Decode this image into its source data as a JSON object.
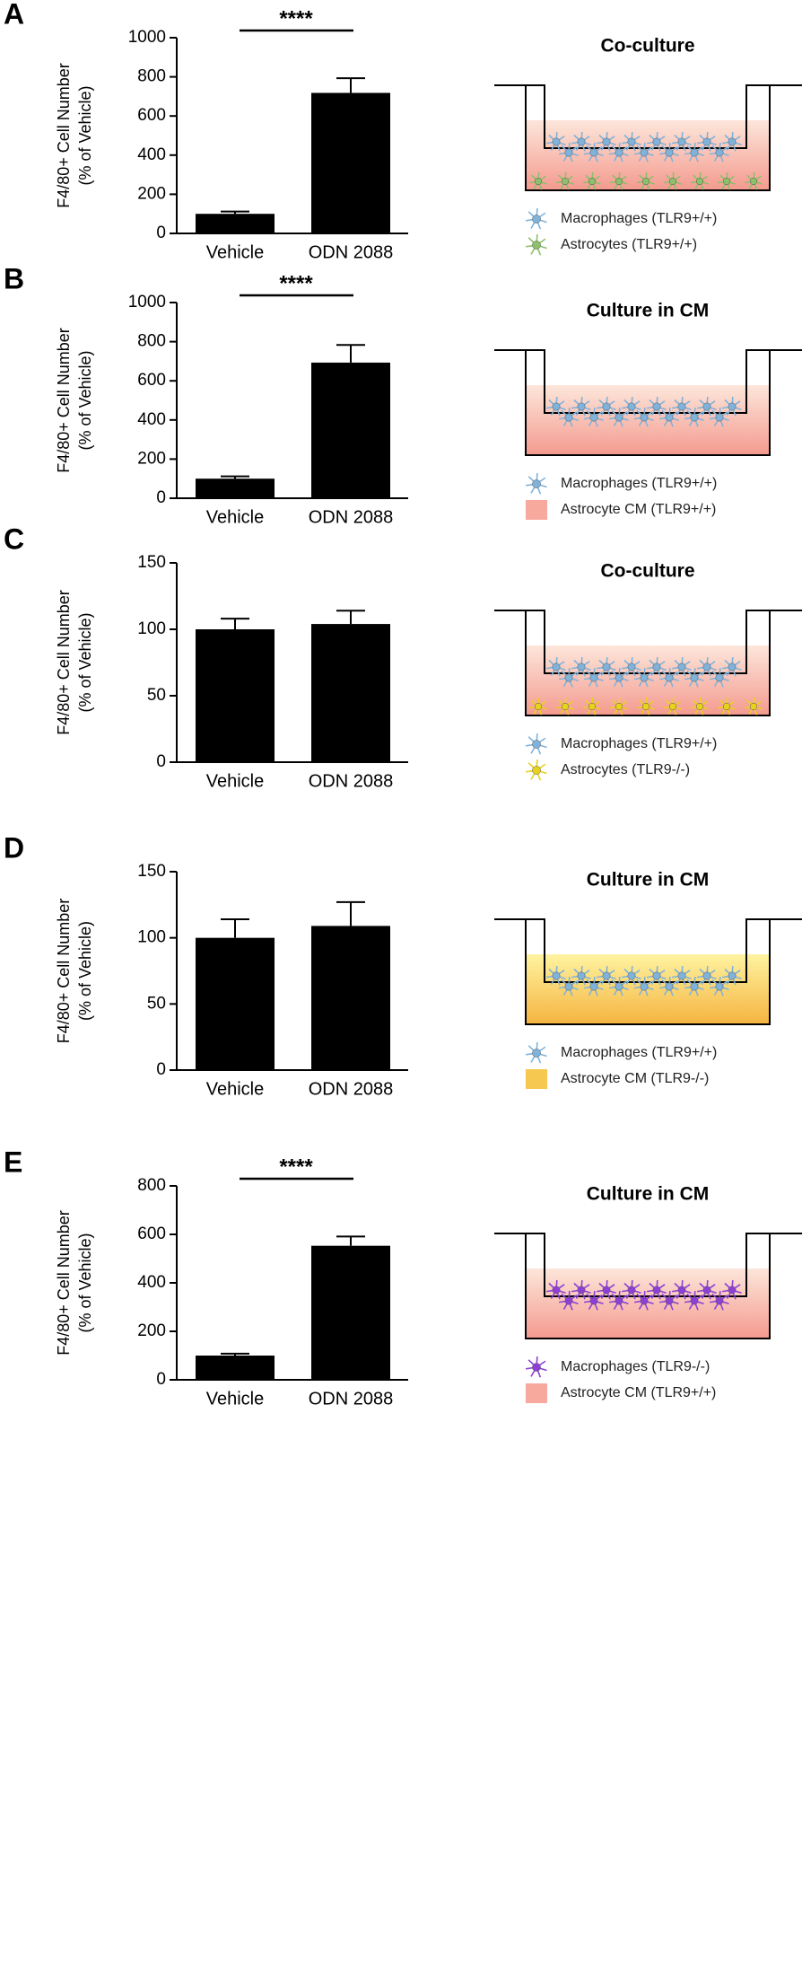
{
  "chart_data": [
    {
      "type": "bar",
      "panel": "A",
      "ylabel": [
        "F4/80+ Cell Number",
        "(% of Vehicle)"
      ],
      "categories": [
        "Vehicle",
        "ODN 2088"
      ],
      "values": [
        100,
        718
      ],
      "errors": [
        12,
        75
      ],
      "color": "#000000",
      "ylim": [
        0,
        1000
      ],
      "yticks": [
        0,
        200,
        400,
        600,
        800,
        1000
      ],
      "significance": "****",
      "diagram_title": "Co-culture",
      "medium_colors": [
        "#fde6da",
        "#f49a8f"
      ],
      "legend": [
        {
          "text": "Macrophages (TLR9+/+)",
          "color": "#7fb3dc",
          "shape": "cell"
        },
        {
          "text": "Astrocytes (TLR9+/+)",
          "color": "#8cc06a",
          "shape": "cell"
        }
      ]
    },
    {
      "type": "bar",
      "panel": "B",
      "ylabel": [
        "F4/80+ Cell Number",
        "(% of Vehicle)"
      ],
      "categories": [
        "Vehicle",
        "ODN 2088"
      ],
      "values": [
        100,
        693
      ],
      "errors": [
        12,
        90
      ],
      "color": "#000000",
      "ylim": [
        0,
        1000
      ],
      "yticks": [
        0,
        200,
        400,
        600,
        800,
        1000
      ],
      "significance": "****",
      "diagram_title": "Culture in CM",
      "medium_colors": [
        "#fde6da",
        "#f49a8f"
      ],
      "legend": [
        {
          "text": "Macrophages (TLR9+/+)",
          "color": "#7fb3dc",
          "shape": "cell"
        },
        {
          "text": "Astrocyte CM (TLR9+/+)",
          "color": "#f6a99c",
          "shape": "swatch"
        }
      ]
    },
    {
      "type": "bar",
      "panel": "C",
      "ylabel": [
        "F4/80+ Cell Number",
        "(% of Vehicle)"
      ],
      "categories": [
        "Vehicle",
        "ODN 2088"
      ],
      "values": [
        100,
        104
      ],
      "errors": [
        8,
        10
      ],
      "color": "#000000",
      "ylim": [
        0,
        150
      ],
      "yticks": [
        0,
        50,
        100,
        150
      ],
      "diagram_title": "Co-culture",
      "medium_colors": [
        "#fde6da",
        "#f49a8f"
      ],
      "legend": [
        {
          "text": "Macrophages (TLR9+/+)",
          "color": "#7fb3dc",
          "shape": "cell"
        },
        {
          "text": "Astrocytes (TLR9-/-)",
          "color": "#e8d21c",
          "shape": "cell"
        }
      ]
    },
    {
      "type": "bar",
      "panel": "D",
      "ylabel": [
        "F4/80+ Cell Number",
        "(% of Vehicle)"
      ],
      "categories": [
        "Vehicle",
        "ODN 2088"
      ],
      "values": [
        100,
        109
      ],
      "errors": [
        14,
        18
      ],
      "color": "#000000",
      "ylim": [
        0,
        150
      ],
      "yticks": [
        0,
        50,
        100,
        150
      ],
      "diagram_title": "Culture in CM",
      "medium_colors": [
        "#fff3a0",
        "#f5b440"
      ],
      "legend": [
        {
          "text": "Macrophages (TLR9+/+)",
          "color": "#7fb3dc",
          "shape": "cell"
        },
        {
          "text": "Astrocyte CM (TLR9-/-)",
          "color": "#f7c850",
          "shape": "swatch"
        }
      ]
    },
    {
      "type": "bar",
      "panel": "E",
      "ylabel": [
        "F4/80+ Cell Number",
        "(% of Vehicle)"
      ],
      "categories": [
        "Vehicle",
        "ODN 2088"
      ],
      "values": [
        100,
        553
      ],
      "errors": [
        8,
        38
      ],
      "color": "#000000",
      "ylim": [
        0,
        800
      ],
      "yticks": [
        0,
        200,
        400,
        600,
        800
      ],
      "significance": "****",
      "diagram_title": "Culture in CM",
      "medium_colors": [
        "#fde6da",
        "#f49a8f"
      ],
      "legend": [
        {
          "text": "Macrophages (TLR9-/-)",
          "color": "#8e3fd6",
          "shape": "cell"
        },
        {
          "text": "Astrocyte CM (TLR9+/+)",
          "color": "#f6a99c",
          "shape": "swatch"
        }
      ]
    }
  ]
}
